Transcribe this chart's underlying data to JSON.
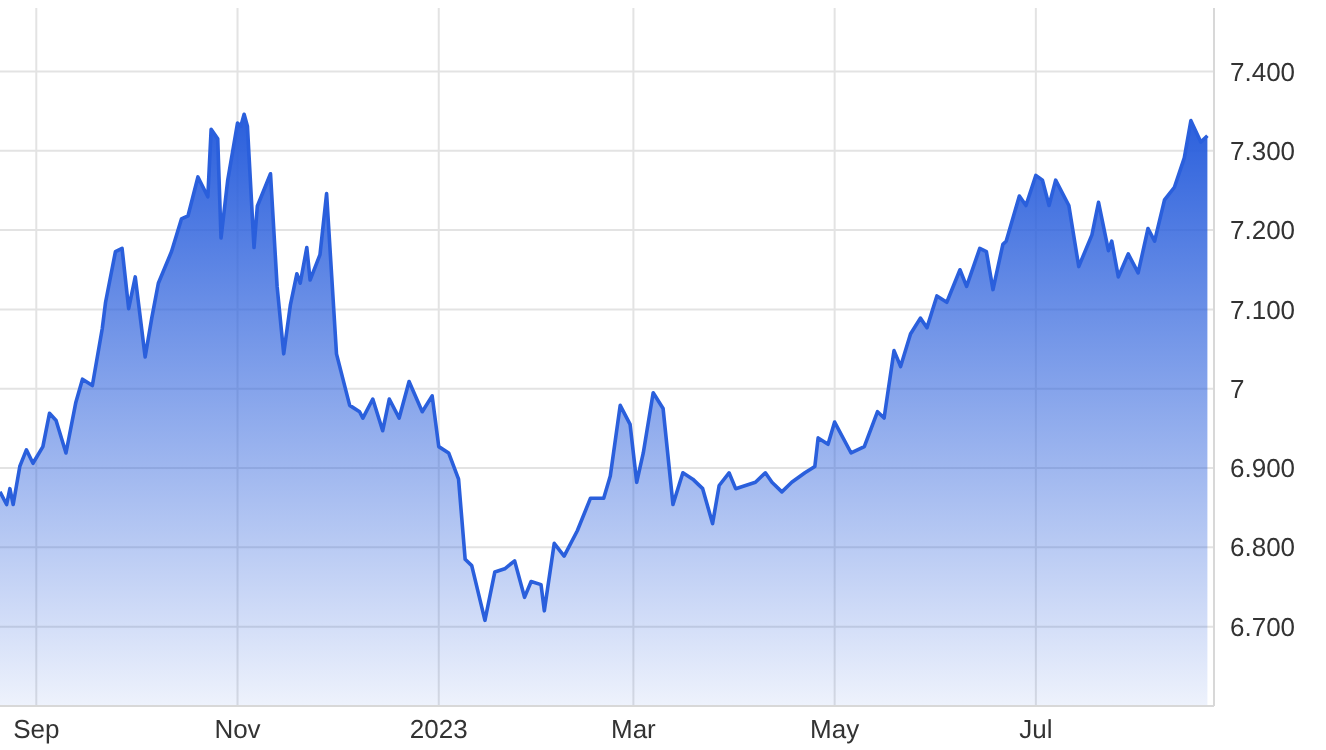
{
  "chart_data": {
    "type": "area",
    "x": [
      "2022-08-21",
      "2022-08-23",
      "2022-08-24",
      "2022-08-25",
      "2022-08-27",
      "2022-08-29",
      "2022-08-31",
      "2022-09-03",
      "2022-09-05",
      "2022-09-07",
      "2022-09-10",
      "2022-09-13",
      "2022-09-15",
      "2022-09-18",
      "2022-09-21",
      "2022-09-22",
      "2022-09-25",
      "2022-09-27",
      "2022-09-29",
      "2022-10-01",
      "2022-10-04",
      "2022-10-06",
      "2022-10-08",
      "2022-10-12",
      "2022-10-15",
      "2022-10-17",
      "2022-10-20",
      "2022-10-23",
      "2022-10-24",
      "2022-10-26",
      "2022-10-27",
      "2022-10-29",
      "2022-11-01",
      "2022-11-02",
      "2022-11-03",
      "2022-11-04",
      "2022-11-06",
      "2022-11-07",
      "2022-11-11",
      "2022-11-13",
      "2022-11-15",
      "2022-11-17",
      "2022-11-19",
      "2022-11-20",
      "2022-11-22",
      "2022-11-23",
      "2022-11-26",
      "2022-11-28",
      "2022-12-01",
      "2022-12-05",
      "2022-12-08",
      "2022-12-09",
      "2022-12-12",
      "2022-12-15",
      "2022-12-17",
      "2022-12-20",
      "2022-12-23",
      "2022-12-27",
      "2022-12-30",
      "2023-01-01",
      "2023-01-04",
      "2023-01-07",
      "2023-01-09",
      "2023-01-11",
      "2023-01-15",
      "2023-01-18",
      "2023-01-21",
      "2023-01-24",
      "2023-01-27",
      "2023-01-29",
      "2023-02-01",
      "2023-02-02",
      "2023-02-05",
      "2023-02-08",
      "2023-02-12",
      "2023-02-16",
      "2023-02-20",
      "2023-02-22",
      "2023-02-25",
      "2023-02-28",
      "2023-03-02",
      "2023-03-04",
      "2023-03-07",
      "2023-03-10",
      "2023-03-13",
      "2023-03-16",
      "2023-03-19",
      "2023-03-22",
      "2023-03-25",
      "2023-03-27",
      "2023-03-30",
      "2023-04-01",
      "2023-04-07",
      "2023-04-10",
      "2023-04-12",
      "2023-04-15",
      "2023-04-18",
      "2023-04-22",
      "2023-04-25",
      "2023-04-26",
      "2023-04-29",
      "2023-05-01",
      "2023-05-06",
      "2023-05-10",
      "2023-05-14",
      "2023-05-16",
      "2023-05-19",
      "2023-05-21",
      "2023-05-24",
      "2023-05-27",
      "2023-05-29",
      "2023-06-01",
      "2023-06-04",
      "2023-06-08",
      "2023-06-10",
      "2023-06-14",
      "2023-06-16",
      "2023-06-18",
      "2023-06-21",
      "2023-06-22",
      "2023-06-26",
      "2023-06-28",
      "2023-07-01",
      "2023-07-03",
      "2023-07-05",
      "2023-07-07",
      "2023-07-11",
      "2023-07-14",
      "2023-07-18",
      "2023-07-20",
      "2023-07-23",
      "2023-07-24",
      "2023-07-26",
      "2023-07-29",
      "2023-08-01",
      "2023-08-04",
      "2023-08-06",
      "2023-08-09",
      "2023-08-12",
      "2023-08-15",
      "2023-08-17",
      "2023-08-20",
      "2023-08-22"
    ],
    "series": [
      {
        "color": "#2a5fdc",
        "values": [
          6.87,
          6.854,
          6.874,
          6.854,
          6.902,
          6.923,
          6.906,
          6.927,
          6.969,
          6.96,
          6.919,
          6.983,
          7.012,
          7.004,
          7.076,
          7.109,
          7.173,
          7.177,
          7.101,
          7.141,
          7.04,
          7.089,
          7.133,
          7.173,
          7.214,
          7.218,
          7.267,
          7.242,
          7.327,
          7.315,
          7.19,
          7.262,
          7.335,
          7.331,
          7.346,
          7.331,
          7.178,
          7.23,
          7.271,
          7.129,
          7.044,
          7.105,
          7.145,
          7.133,
          7.178,
          7.137,
          7.169,
          7.246,
          7.044,
          6.979,
          6.971,
          6.963,
          6.987,
          6.947,
          6.987,
          6.963,
          7.009,
          6.971,
          6.991,
          6.927,
          6.919,
          6.886,
          6.785,
          6.777,
          6.708,
          6.769,
          6.773,
          6.783,
          6.737,
          6.757,
          6.753,
          6.72,
          6.805,
          6.789,
          6.821,
          6.862,
          6.862,
          6.89,
          6.979,
          6.955,
          6.882,
          6.919,
          6.995,
          6.975,
          6.854,
          6.894,
          6.886,
          6.874,
          6.83,
          6.878,
          6.894,
          6.874,
          6.882,
          6.894,
          6.882,
          6.87,
          6.882,
          6.894,
          6.902,
          6.938,
          6.93,
          6.958,
          6.919,
          6.927,
          6.971,
          6.963,
          7.048,
          7.028,
          7.069,
          7.089,
          7.077,
          7.117,
          7.109,
          7.15,
          7.129,
          7.177,
          7.173,
          7.125,
          7.182,
          7.186,
          7.243,
          7.231,
          7.269,
          7.263,
          7.231,
          7.263,
          7.231,
          7.154,
          7.194,
          7.235,
          7.174,
          7.186,
          7.141,
          7.17,
          7.146,
          7.202,
          7.186,
          7.238,
          7.254,
          7.291,
          7.338,
          7.311,
          7.319
        ]
      }
    ],
    "xlim": [
      "2022-08-21",
      "2023-08-24"
    ],
    "xticks": [
      {
        "value": "2022-09-01",
        "label": "Sep"
      },
      {
        "value": "2022-11-01",
        "label": "Nov"
      },
      {
        "value": "2023-01-01",
        "label": "2023"
      },
      {
        "value": "2023-03-01",
        "label": "Mar"
      },
      {
        "value": "2023-05-01",
        "label": "May"
      },
      {
        "value": "2023-07-01",
        "label": "Jul"
      }
    ],
    "ylim": [
      6.6,
      7.48
    ],
    "yticks": [
      {
        "value": 6.7,
        "label": "6.700"
      },
      {
        "value": 6.8,
        "label": "6.800"
      },
      {
        "value": 6.9,
        "label": "6.900"
      },
      {
        "value": 7,
        "label": "7"
      },
      {
        "value": 7.1,
        "label": "7.100"
      },
      {
        "value": 7.2,
        "label": "7.200"
      },
      {
        "value": 7.3,
        "label": "7.300"
      },
      {
        "value": 7.4,
        "label": "7.400"
      }
    ],
    "grid": true
  }
}
